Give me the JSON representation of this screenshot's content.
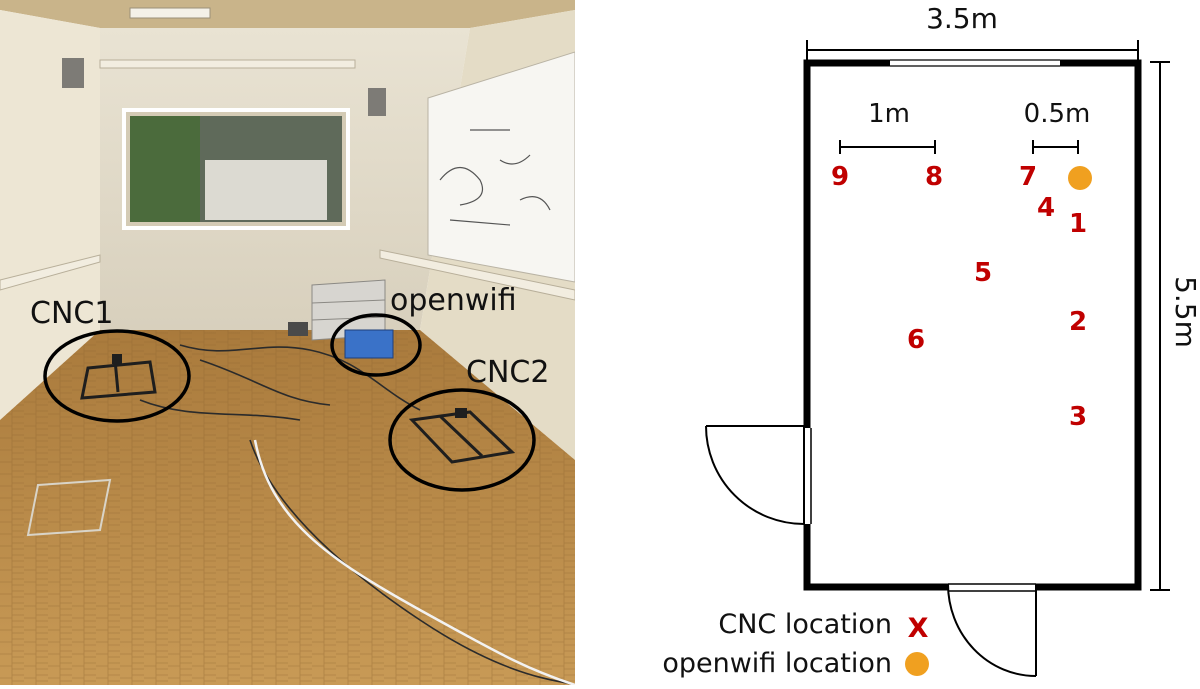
{
  "photo": {
    "labels": {
      "cnc1": "CNC1",
      "openwifi": "openwifi",
      "cnc2": "CNC2"
    }
  },
  "floorplan": {
    "width_label": "3.5m",
    "height_label": "5.5m",
    "scale_1m": "1m",
    "scale_05m": "0.5m",
    "markers": [
      "1",
      "2",
      "3",
      "4",
      "5",
      "6",
      "7",
      "8",
      "9"
    ],
    "legend": {
      "cnc": "CNC location",
      "cnc_symbol": "X",
      "openwifi": "openwifi location"
    }
  },
  "colors": {
    "marker": "#c00000",
    "openwifi_dot": "#f0a020",
    "floor": "#b98a45",
    "wall": "#e7e0cf"
  }
}
